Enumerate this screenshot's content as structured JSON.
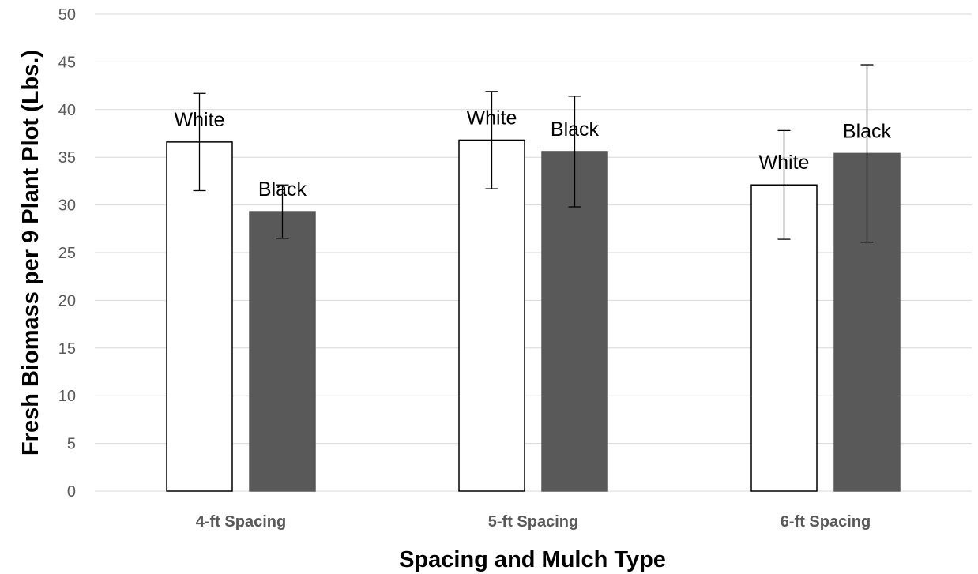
{
  "chart_data": {
    "type": "bar",
    "categories": [
      "4-ft Spacing",
      "5-ft Spacing",
      "6-ft Spacing"
    ],
    "series": [
      {
        "label": "White",
        "values": [
          36.6,
          36.8,
          32.1
        ],
        "error": [
          5.1,
          5.1,
          5.7
        ],
        "fill": "#ffffff",
        "stroke": "#000000"
      },
      {
        "label": "Black",
        "values": [
          29.3,
          35.6,
          35.4
        ],
        "error": [
          2.8,
          5.8,
          9.3
        ],
        "fill": "#595959",
        "stroke": "#595959"
      }
    ],
    "ylim": [
      0,
      50
    ],
    "yticks": [
      0,
      5,
      10,
      15,
      20,
      25,
      30,
      35,
      40,
      45,
      50
    ],
    "xlabel": "Spacing and Mulch Type",
    "ylabel": "Fresh Biomass per 9 Plant Plot (Lbs.)",
    "grid": true,
    "legend": "none",
    "gridline_color": "#d9d9d9"
  }
}
